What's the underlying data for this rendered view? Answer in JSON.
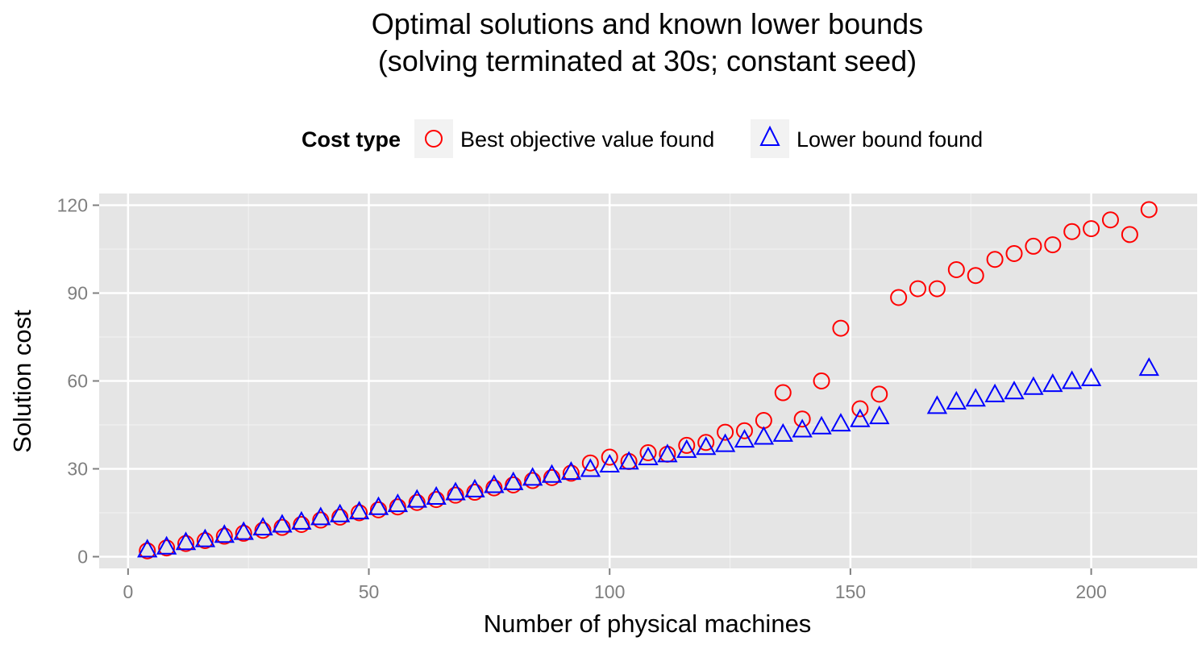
{
  "chart_data": {
    "type": "scatter",
    "title": "Optimal solutions and known lower bounds",
    "subtitle": "(solving terminated at 30s; constant seed)",
    "xlabel": "Number of physical machines",
    "ylabel": "Solution cost",
    "xlim": [
      -6,
      222
    ],
    "ylim": [
      -4,
      124
    ],
    "x_ticks": [
      0,
      50,
      100,
      150,
      200
    ],
    "y_ticks": [
      0,
      30,
      60,
      90,
      120
    ],
    "x_tick_labels": [
      "0",
      "50",
      "100",
      "150",
      "200"
    ],
    "y_tick_labels": [
      "0",
      "30",
      "60",
      "90",
      "120"
    ],
    "grid": true,
    "legend": {
      "title": "Cost type",
      "position": "top",
      "entries": [
        "Best objective value found",
        "Lower bound found"
      ]
    },
    "series": [
      {
        "name": "Best objective value found",
        "marker": "circle",
        "color": "#ff0000",
        "points": [
          [
            4,
            2
          ],
          [
            8,
            3
          ],
          [
            12,
            4.5
          ],
          [
            16,
            5.5
          ],
          [
            20,
            7
          ],
          [
            24,
            8
          ],
          [
            28,
            9
          ],
          [
            32,
            10
          ],
          [
            36,
            11
          ],
          [
            40,
            12.5
          ],
          [
            44,
            13.5
          ],
          [
            48,
            15
          ],
          [
            52,
            16
          ],
          [
            56,
            17
          ],
          [
            60,
            18.5
          ],
          [
            64,
            19.5
          ],
          [
            68,
            21
          ],
          [
            72,
            22
          ],
          [
            76,
            23.5
          ],
          [
            80,
            24.5
          ],
          [
            84,
            26
          ],
          [
            88,
            27
          ],
          [
            92,
            28.5
          ],
          [
            96,
            32
          ],
          [
            100,
            34
          ],
          [
            104,
            32.5
          ],
          [
            108,
            35.5
          ],
          [
            112,
            35
          ],
          [
            116,
            38
          ],
          [
            120,
            39
          ],
          [
            124,
            42.5
          ],
          [
            128,
            43
          ],
          [
            132,
            46.5
          ],
          [
            136,
            56
          ],
          [
            140,
            47
          ],
          [
            144,
            60
          ],
          [
            148,
            78
          ],
          [
            152,
            50.5
          ],
          [
            156,
            55.5
          ],
          [
            160,
            88.5
          ],
          [
            164,
            91.5
          ],
          [
            168,
            91.5
          ],
          [
            172,
            98
          ],
          [
            176,
            96
          ],
          [
            180,
            101.5
          ],
          [
            184,
            103.5
          ],
          [
            188,
            106
          ],
          [
            192,
            106.5
          ],
          [
            196,
            111
          ],
          [
            200,
            112
          ],
          [
            204,
            115
          ],
          [
            208,
            110
          ],
          [
            212,
            118.5
          ]
        ]
      },
      {
        "name": "Lower bound found",
        "marker": "triangle",
        "color": "#0000ff",
        "points": [
          [
            4,
            2.5
          ],
          [
            8,
            3.5
          ],
          [
            12,
            5
          ],
          [
            16,
            6
          ],
          [
            20,
            7.5
          ],
          [
            24,
            8.5
          ],
          [
            28,
            10
          ],
          [
            32,
            11
          ],
          [
            36,
            12
          ],
          [
            40,
            13.5
          ],
          [
            44,
            14.5
          ],
          [
            48,
            15.5
          ],
          [
            52,
            17
          ],
          [
            56,
            18
          ],
          [
            60,
            19.5
          ],
          [
            64,
            20.5
          ],
          [
            68,
            22
          ],
          [
            72,
            23
          ],
          [
            76,
            24.5
          ],
          [
            80,
            25.5
          ],
          [
            84,
            27
          ],
          [
            88,
            28
          ],
          [
            92,
            29
          ],
          [
            96,
            30
          ],
          [
            100,
            31.5
          ],
          [
            104,
            32.5
          ],
          [
            108,
            34
          ],
          [
            112,
            35
          ],
          [
            116,
            36.5
          ],
          [
            120,
            37.5
          ],
          [
            124,
            38.5
          ],
          [
            128,
            40
          ],
          [
            132,
            41
          ],
          [
            136,
            42
          ],
          [
            140,
            43.5
          ],
          [
            144,
            44.5
          ],
          [
            148,
            45.5
          ],
          [
            152,
            47
          ],
          [
            156,
            48
          ],
          [
            168,
            51.5
          ],
          [
            172,
            53
          ],
          [
            176,
            54
          ],
          [
            180,
            55.5
          ],
          [
            184,
            56.5
          ],
          [
            188,
            58
          ],
          [
            192,
            59
          ],
          [
            196,
            60
          ],
          [
            200,
            61
          ],
          [
            212,
            64.5
          ]
        ]
      }
    ]
  }
}
